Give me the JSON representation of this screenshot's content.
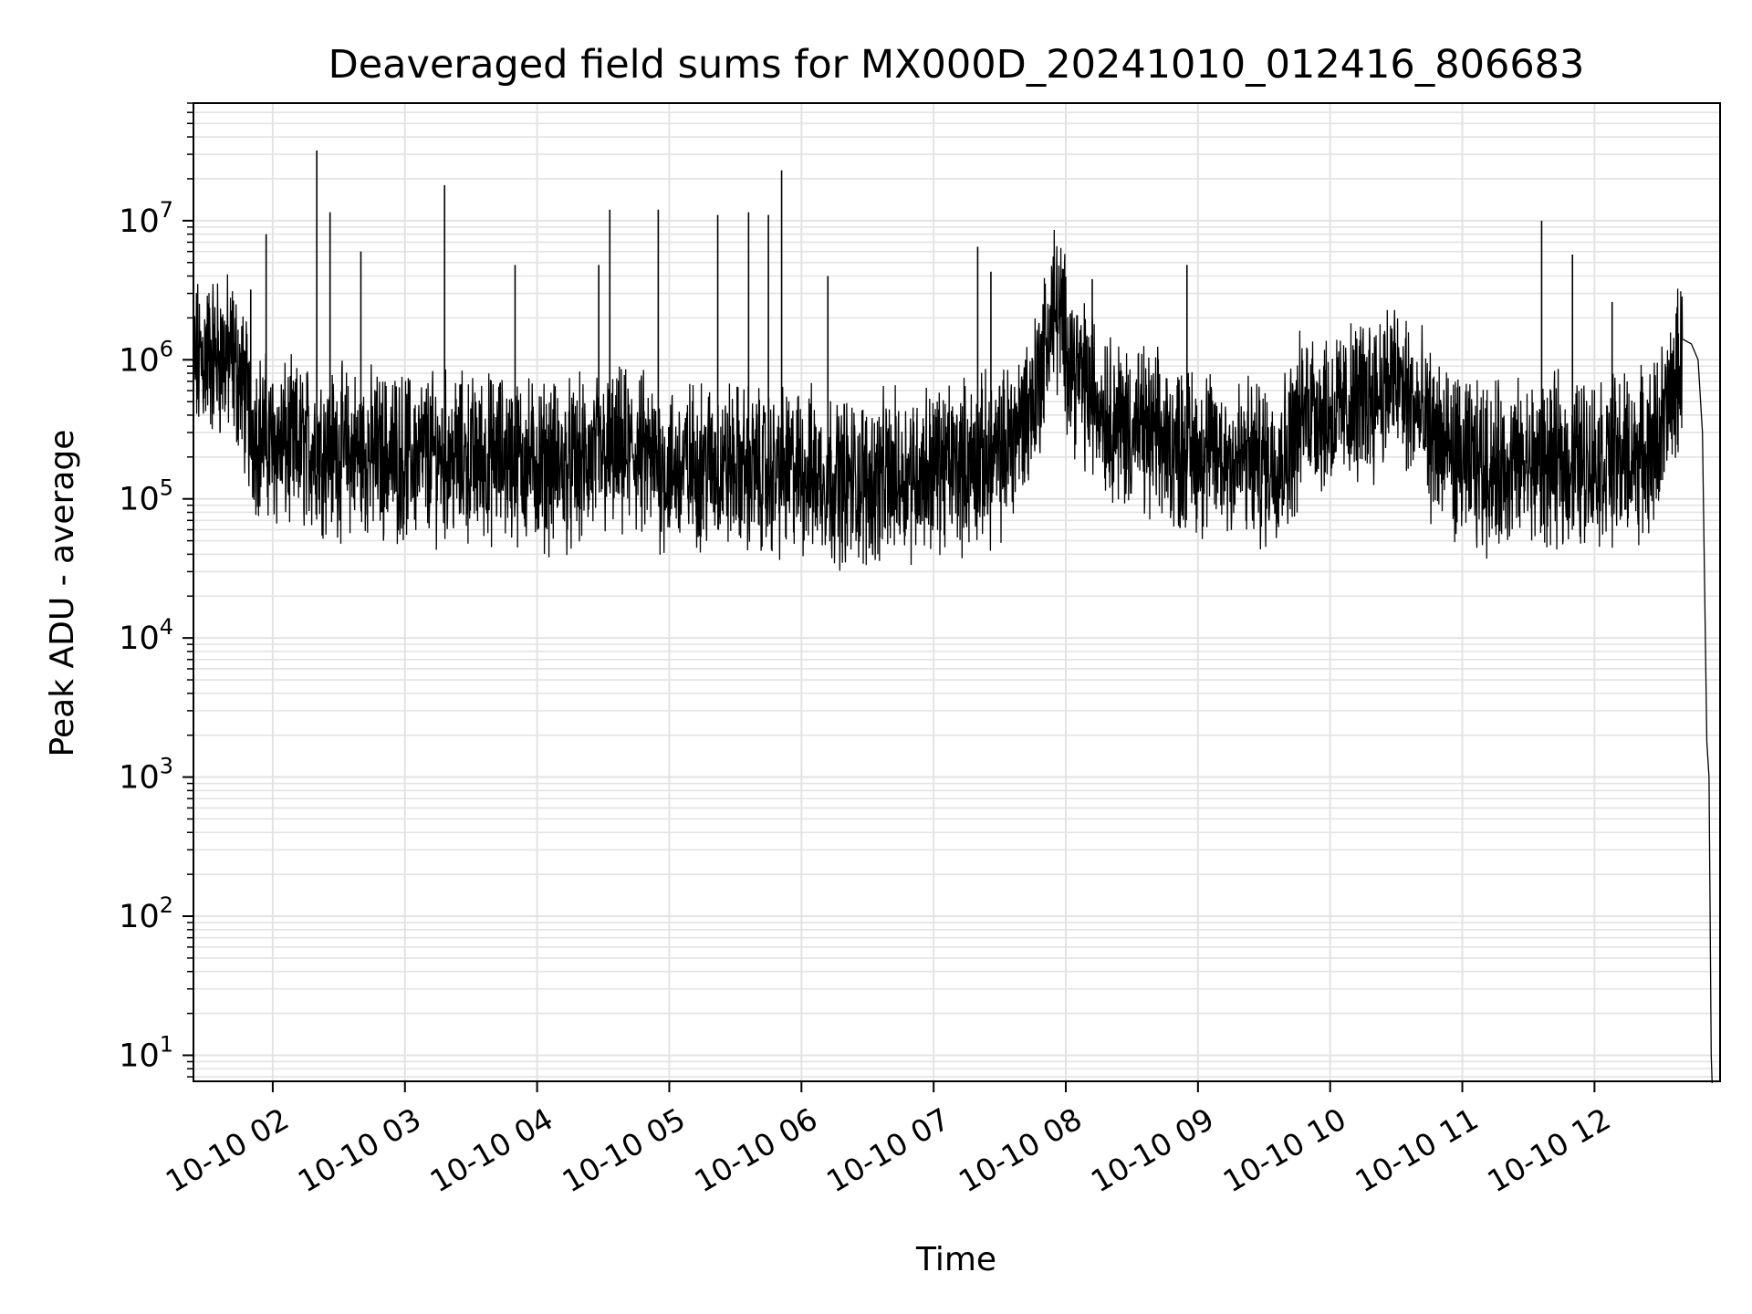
{
  "chart_data": {
    "type": "line",
    "title": "Deaveraged field sums for MX000D_20241010_012416_806683",
    "xlabel": "Time",
    "ylabel": "Peak ADU - average",
    "yscale": "log",
    "ylim": [
      6.5,
      70000000
    ],
    "xlim": [
      "2024-10-10 01:24",
      "2024-10-10 12:57"
    ],
    "grid": true,
    "line_color": "#000000",
    "grid_color": "#e3e3e3",
    "x_ticks": [
      "10-10 02",
      "10-10 03",
      "10-10 04",
      "10-10 05",
      "10-10 06",
      "10-10 07",
      "10-10 08",
      "10-10 09",
      "10-10 10",
      "10-10 11",
      "10-10 12"
    ],
    "y_ticks": [
      {
        "base": "10",
        "exp": "1"
      },
      {
        "base": "10",
        "exp": "2"
      },
      {
        "base": "10",
        "exp": "3"
      },
      {
        "base": "10",
        "exp": "4"
      },
      {
        "base": "10",
        "exp": "5"
      },
      {
        "base": "10",
        "exp": "6"
      },
      {
        "base": "10",
        "exp": "7"
      }
    ],
    "series": [
      {
        "x": [
          "2024-10-10 01:24",
          "2024-10-10 01:30",
          "2024-10-10 01:36",
          "2024-10-10 01:42",
          "2024-10-10 01:47",
          "2024-10-10 01:50",
          "2024-10-10 01:54",
          "2024-10-10 02:00",
          "2024-10-10 02:10",
          "2024-10-10 02:20",
          "2024-10-10 02:30",
          "2024-10-10 02:45",
          "2024-10-10 03:00",
          "2024-10-10 03:15",
          "2024-10-10 03:30",
          "2024-10-10 03:45",
          "2024-10-10 04:00",
          "2024-10-10 04:15",
          "2024-10-10 04:30",
          "2024-10-10 04:45",
          "2024-10-10 05:00",
          "2024-10-10 05:15",
          "2024-10-10 05:30",
          "2024-10-10 05:45",
          "2024-10-10 06:00",
          "2024-10-10 06:15",
          "2024-10-10 06:30",
          "2024-10-10 06:45",
          "2024-10-10 07:00",
          "2024-10-10 07:15",
          "2024-10-10 07:30",
          "2024-10-10 07:45",
          "2024-10-10 07:55",
          "2024-10-10 08:05",
          "2024-10-10 08:15",
          "2024-10-10 08:25",
          "2024-10-10 08:35",
          "2024-10-10 08:45",
          "2024-10-10 09:00",
          "2024-10-10 09:15",
          "2024-10-10 09:30",
          "2024-10-10 09:40",
          "2024-10-10 09:50",
          "2024-10-10 10:00",
          "2024-10-10 10:10",
          "2024-10-10 10:20",
          "2024-10-10 10:30",
          "2024-10-10 10:45",
          "2024-10-10 11:00",
          "2024-10-10 11:15",
          "2024-10-10 11:30",
          "2024-10-10 11:45",
          "2024-10-10 12:00",
          "2024-10-10 12:15",
          "2024-10-10 12:25",
          "2024-10-10 12:35",
          "2024-10-10 12:40",
          "2024-10-10 12:44",
          "2024-10-10 12:47",
          "2024-10-10 12:49",
          "2024-10-10 12:51",
          "2024-10-10 12:52",
          "2024-10-10 12:53"
        ],
        "values": [
          900000,
          1100000,
          1050000,
          1000000,
          600000,
          350000,
          300000,
          250000,
          230000,
          240000,
          220000,
          210000,
          200000,
          210000,
          190000,
          200000,
          180000,
          170000,
          200000,
          210000,
          160000,
          180000,
          170000,
          150000,
          160000,
          140000,
          130000,
          150000,
          170000,
          180000,
          200000,
          500000,
          2500000,
          800000,
          500000,
          350000,
          300000,
          250000,
          220000,
          200000,
          180000,
          220000,
          500000,
          400000,
          450000,
          600000,
          700000,
          300000,
          180000,
          170000,
          175000,
          180000,
          190000,
          200000,
          210000,
          500000,
          1100000,
          1300000,
          1000000,
          300000,
          1800,
          1000,
          10
        ]
      }
    ],
    "spikes": [
      {
        "t": "2024-10-10 01:50",
        "v": 3200000
      },
      {
        "t": "2024-10-10 01:57",
        "v": 8000000
      },
      {
        "t": "2024-10-10 02:20",
        "v": 32000000
      },
      {
        "t": "2024-10-10 02:26",
        "v": 11500000
      },
      {
        "t": "2024-10-10 02:40",
        "v": 6000000
      },
      {
        "t": "2024-10-10 03:18",
        "v": 18000000
      },
      {
        "t": "2024-10-10 03:50",
        "v": 4800000
      },
      {
        "t": "2024-10-10 04:28",
        "v": 4800000
      },
      {
        "t": "2024-10-10 04:33",
        "v": 12000000
      },
      {
        "t": "2024-10-10 04:55",
        "v": 12000000
      },
      {
        "t": "2024-10-10 05:22",
        "v": 11000000
      },
      {
        "t": "2024-10-10 05:36",
        "v": 11500000
      },
      {
        "t": "2024-10-10 05:45",
        "v": 11000000
      },
      {
        "t": "2024-10-10 05:51",
        "v": 23000000
      },
      {
        "t": "2024-10-10 06:12",
        "v": 4000000
      },
      {
        "t": "2024-10-10 07:20",
        "v": 6500000
      },
      {
        "t": "2024-10-10 07:26",
        "v": 4300000
      },
      {
        "t": "2024-10-10 08:12",
        "v": 3800000
      },
      {
        "t": "2024-10-10 08:55",
        "v": 4800000
      },
      {
        "t": "2024-10-10 11:36",
        "v": 10000000
      },
      {
        "t": "2024-10-10 11:50",
        "v": 5700000
      },
      {
        "t": "2024-10-10 12:08",
        "v": 2600000
      }
    ]
  }
}
